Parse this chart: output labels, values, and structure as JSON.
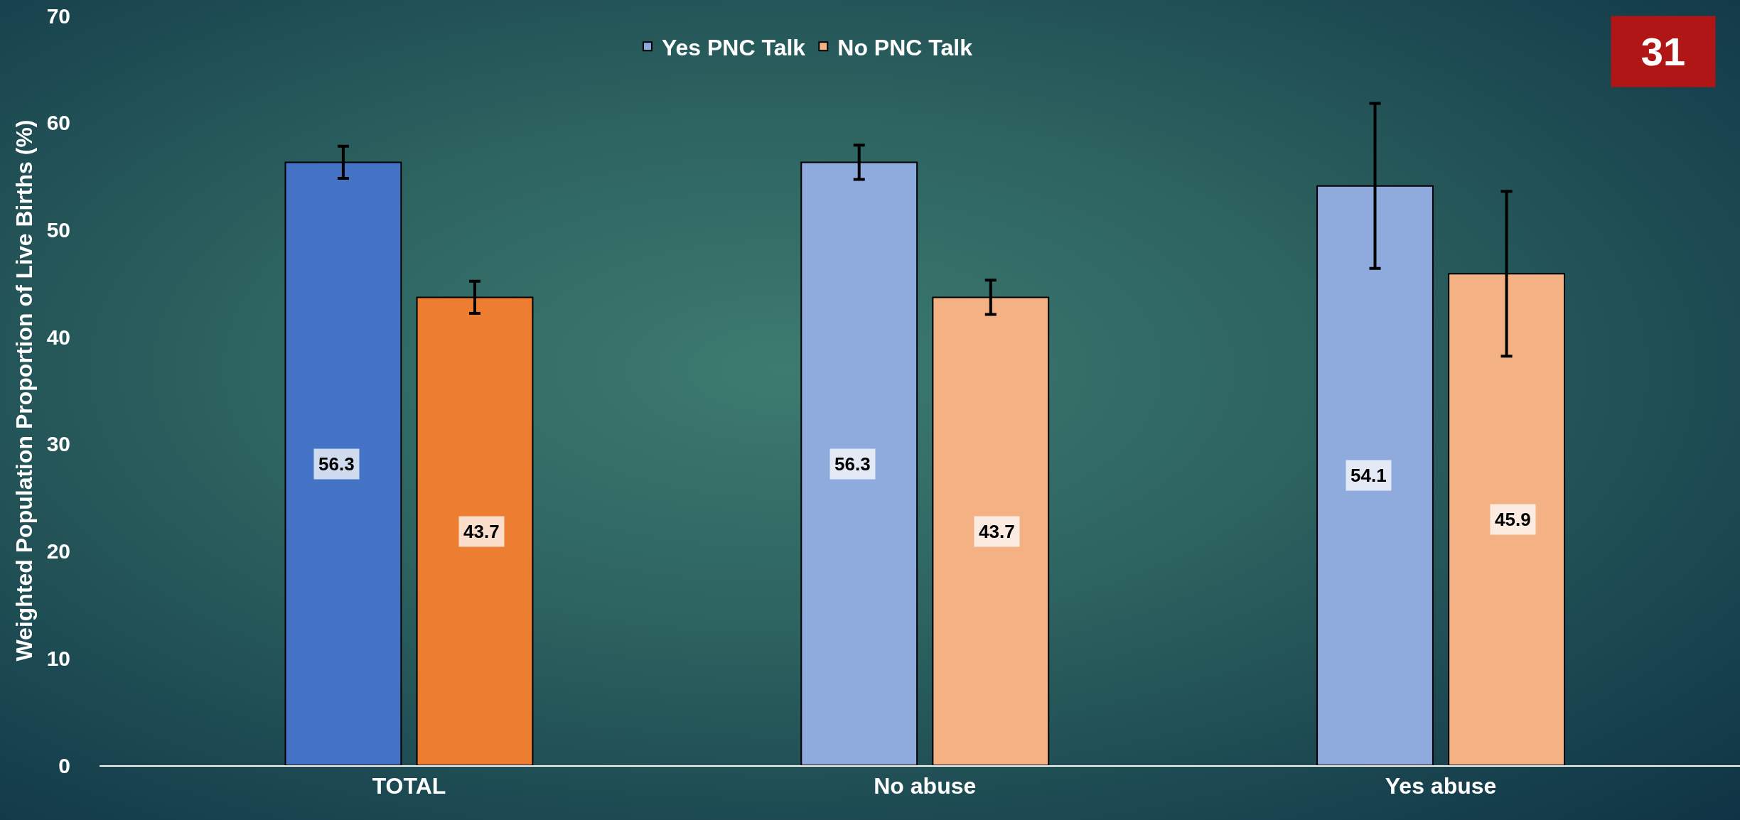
{
  "chart_data": {
    "type": "bar",
    "ylabel": "Weighted Population Proportion of Live Births (%)",
    "categories": [
      "TOTAL",
      "No abuse",
      "Yes abuse"
    ],
    "series": [
      {
        "name": "Yes PNC Talk",
        "color": "#8faadc",
        "colors": [
          "#4472c4",
          "#8faadc",
          "#8faadc"
        ],
        "values": [
          56.3,
          56.3,
          54.1
        ],
        "errors": [
          1.5,
          1.6,
          7.7
        ]
      },
      {
        "name": "No PNC Talk",
        "color": "#f4b183",
        "colors": [
          "#ed7d31",
          "#f4b183",
          "#f4b183"
        ],
        "values": [
          43.7,
          43.7,
          45.9
        ],
        "errors": [
          1.5,
          1.6,
          7.7
        ]
      }
    ],
    "ylim": [
      0,
      70
    ],
    "yticks": [
      0,
      10,
      20,
      30,
      40,
      50,
      60,
      70
    ],
    "grid": false,
    "legend": "top",
    "data_labels": true,
    "annotations": [
      "31"
    ]
  }
}
